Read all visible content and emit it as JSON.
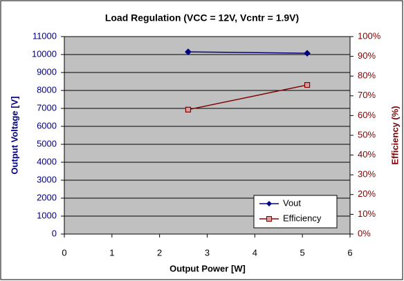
{
  "chart_data": {
    "type": "line",
    "title": "Load Regulation (VCC = 12V, Vcntr = 1.9V)",
    "x_label": "Output Power [W]",
    "y_label": "Output Voltage [V]",
    "y2_label": "Efficiency (%)",
    "x": [
      2.6,
      5.1
    ],
    "series": [
      {
        "name": "Vout",
        "color": "#000080",
        "marker": "diamond",
        "values": [
          10150,
          10070
        ]
      },
      {
        "name": "Efficiency",
        "color": "#800000",
        "marker": "square",
        "axis": "y2",
        "values": [
          63,
          75.5
        ]
      }
    ],
    "xlim": [
      0,
      6
    ],
    "xticks": [
      0,
      1,
      2,
      3,
      4,
      5,
      6
    ],
    "ylim": [
      0,
      11000
    ],
    "yticks": [
      0,
      1000,
      2000,
      3000,
      4000,
      5000,
      6000,
      7000,
      8000,
      9000,
      10000,
      11000
    ],
    "y2lim": [
      0,
      100
    ],
    "y2ticks": [
      {
        "value": 0,
        "label": "0%"
      },
      {
        "value": 10,
        "label": "10%"
      },
      {
        "value": 20,
        "label": "20%"
      },
      {
        "value": 30,
        "label": "30%"
      },
      {
        "value": 40,
        "label": "40%"
      },
      {
        "value": 50,
        "label": "50%"
      },
      {
        "value": 60,
        "label": "60%"
      },
      {
        "value": 70,
        "label": "70%"
      },
      {
        "value": 80,
        "label": "80%"
      },
      {
        "value": 90,
        "label": "90%"
      },
      {
        "value": 100,
        "label": "100%"
      }
    ],
    "grid": true,
    "legend": "lower right",
    "plot_background": "#c0c0c0"
  }
}
